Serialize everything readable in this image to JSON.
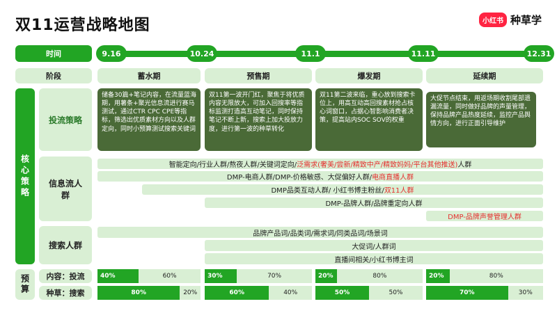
{
  "title": "双11运营战略地图",
  "brand": {
    "logo": "小红书",
    "name": "种草学"
  },
  "labels": {
    "timeline": "时间",
    "phase": "阶段",
    "core": "核心策略",
    "strategy": "投流策略",
    "audience": "信息流人群",
    "search": "搜索人群",
    "budget": "预算",
    "budget_content": "内容：投流",
    "budget_seed": "种草：搜索"
  },
  "dates": [
    "9.16",
    "10.24",
    "11.1",
    "11.11",
    "12.31"
  ],
  "phases": [
    "蓄水期",
    "预售期",
    "爆发期",
    "延续期"
  ],
  "strategies": [
    "储备30篇+笔记内容，在流量蓝海期，用薯条+聚光信息流进行赛马测试，通过CTR CPC CPE等指标，筛选出优质素材方向以及人群定向，同时小预算测试搜索关键词",
    "双11第一波开门红，聚焦于将优质内容无限放大，可加入回搜率等指标监测打造高互动笔记，同时保持笔记不断上新，搜索上加大投放力度，进行第一波的种草转化",
    "双11第二波来临，重心放到搜索卡位上，用高互动高回搜素材抢占核心词窗口，占据心智影响消费者决策，提高站内SOC SOV的权重",
    "大促节点结束，用返场期收割尾部遗漏流量，同时做好品牌的声量管理，保持品牌产品热度延续，监控产品舆情方向，进行正面引导维护"
  ],
  "audience_rows": [
    {
      "pre": "智能定向/行业人群/熬夜人群/关键词定向/",
      "red": "泛需求(奢美/尝新/精致中产/精致妈妈/平台其他推送)",
      "post": "人群"
    },
    {
      "pre": "DMP-电商人群/DMP-价格敏感、大促偏好人群/",
      "red": "电商直播人群",
      "post": ""
    },
    {
      "pre": "DMP品类互动人群/ 小红书博主粉丝/",
      "red": "双11人群",
      "post": ""
    },
    {
      "pre": "DMP-品牌人群/品牌重定向人群",
      "red": "",
      "post": ""
    },
    {
      "pre": "",
      "red": "DMP-品牌声誉管理人群",
      "post": ""
    }
  ],
  "search_rows": [
    "品牌产品词/品类词/需求词/同类品词/场景词",
    "大促词/人群词",
    "直播间相关/小红书博主词"
  ],
  "budget_content": [
    [
      "40%",
      "60%"
    ],
    [
      "30%",
      "70%"
    ],
    [
      "20%",
      "80%"
    ],
    [
      "20%",
      "80%"
    ]
  ],
  "budget_seed": [
    [
      "80%",
      "20%"
    ],
    [
      "60%",
      "40%"
    ],
    [
      "50%",
      "50%"
    ],
    [
      "70%",
      "30%"
    ]
  ],
  "colors": {
    "dark_green": "#22a524",
    "light_green": "#d9efd4",
    "strategy_bg": "#4a6a37",
    "highlight_red": "#e5312f",
    "brand_red": "#ff2442"
  }
}
